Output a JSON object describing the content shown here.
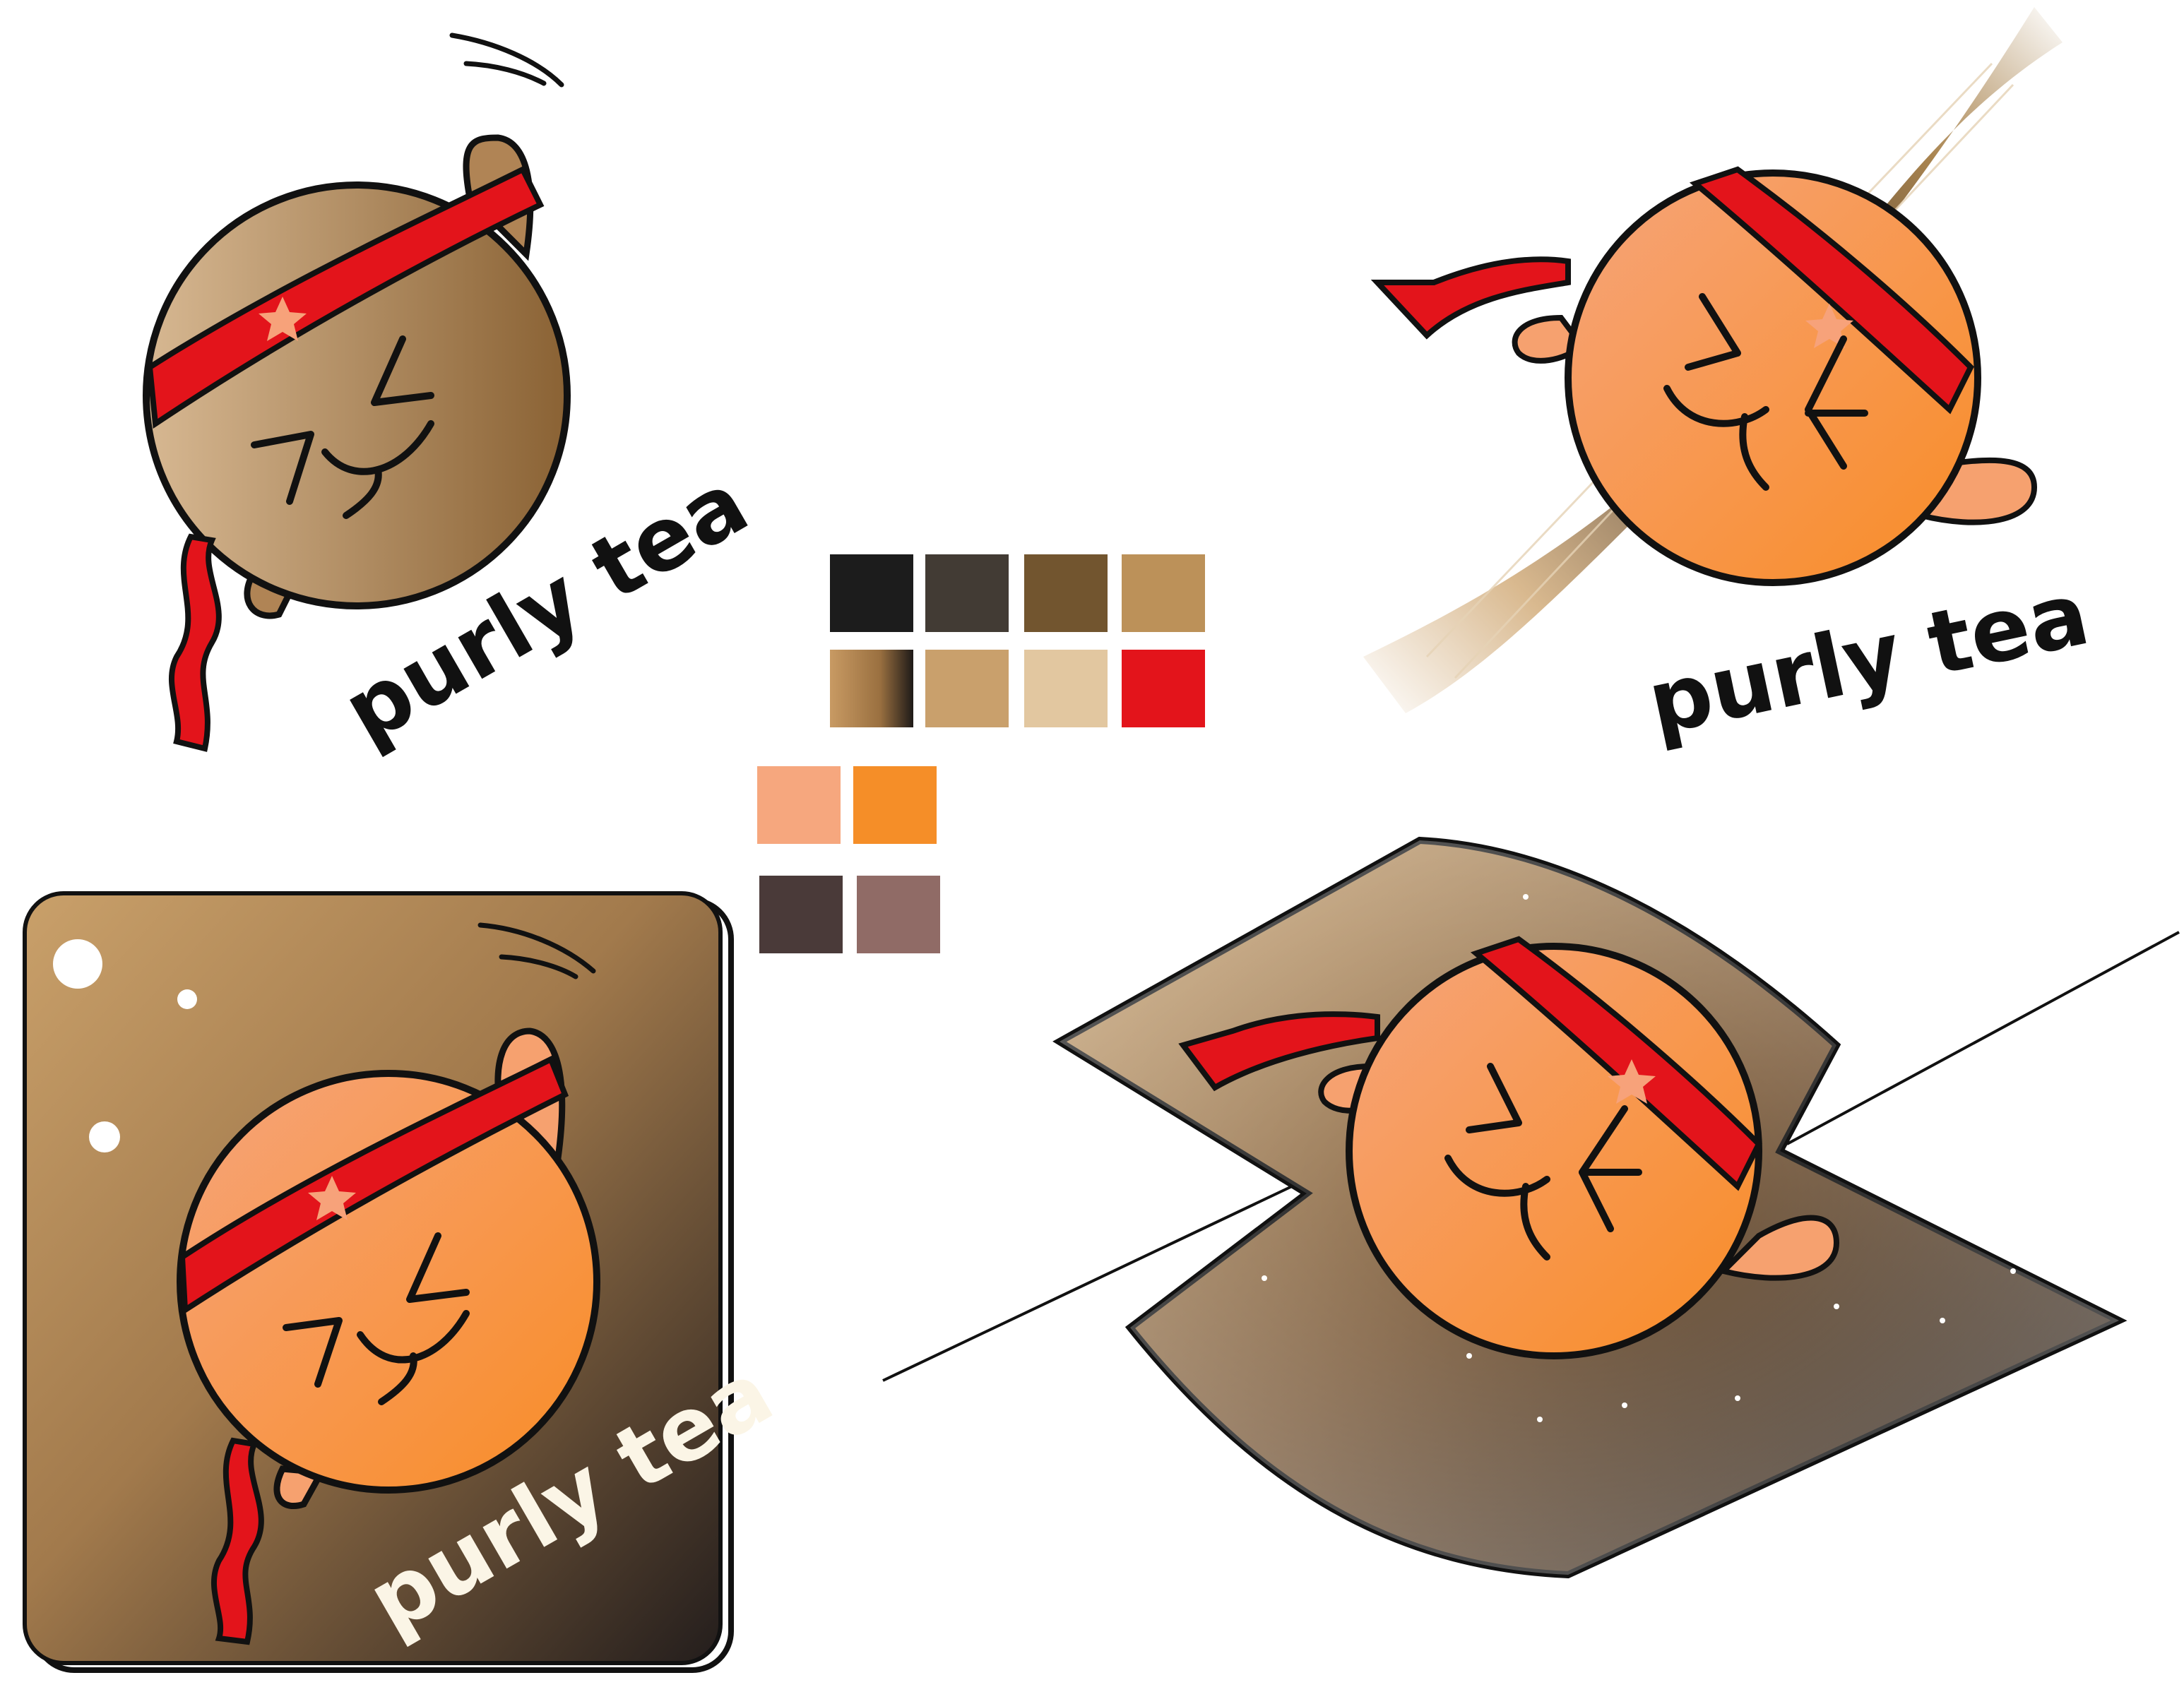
{
  "brand": {
    "name": "purly tea",
    "logo_text_top_left": "purly tea",
    "logo_text_top_right": "purly tea",
    "logo_text_badge": "purly tea"
  },
  "colors": {
    "outline": "#111111",
    "headband": "#e3141b",
    "star": "#f7a27a",
    "orange_face_light": "#f6a16f",
    "orange_face_dark": "#f98f2c",
    "brown_face_light": "#d2b08a",
    "brown_face_dark": "#8c6434",
    "badge_light": "#c9a06a",
    "badge_dark": "#2a2220",
    "text_dark": "#111111",
    "text_light": "#fbf5e6"
  },
  "palette": {
    "row1": [
      "#1c1c1c",
      "#423b34",
      "#72552f",
      "#bc9159"
    ],
    "row2": [
      "gradient-brown",
      "#c9a06c",
      "#e2c7a0",
      "#e3141b"
    ],
    "row3": [
      "#f6a77e",
      "#f58e28"
    ],
    "row4": [
      "#4a3a39",
      "#906b66"
    ]
  },
  "icons": {
    "mascot": "mascot-face-icon",
    "headband": "headband-icon",
    "star": "star-icon",
    "motion_lines": "motion-lines-icon",
    "sparkle": "sparkle-icon"
  }
}
